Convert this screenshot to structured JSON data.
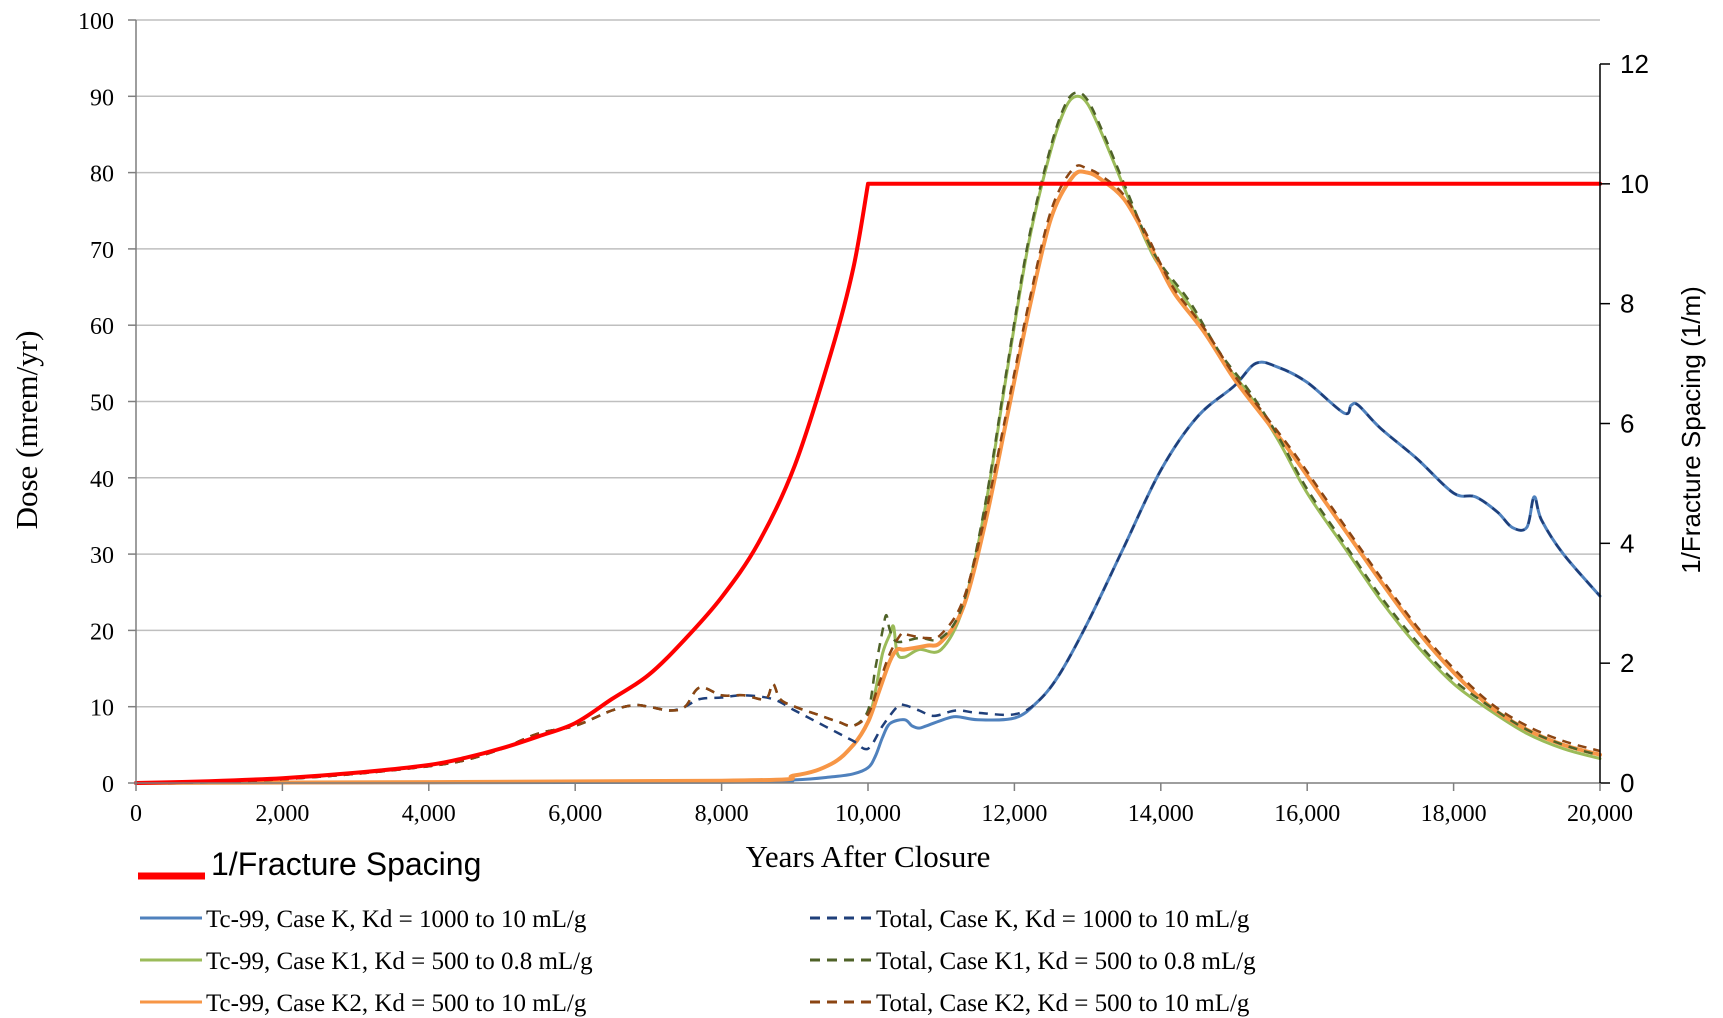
{
  "chart_data": {
    "type": "line",
    "xlabel": "Years After Closure",
    "ylabel_left": "Dose (mrem/yr)",
    "ylabel_right": "1/Fracture Spacing (1/m)",
    "xlim": [
      0,
      20000
    ],
    "ylim_left": [
      0,
      100
    ],
    "ylim_right": [
      0,
      13
    ],
    "x_ticks": [
      0,
      2000,
      4000,
      6000,
      8000,
      10000,
      12000,
      14000,
      16000,
      18000,
      20000
    ],
    "x_tick_labels": [
      "0",
      "2,000",
      "4,000",
      "6,000",
      "8,000",
      "10,000",
      "12,000",
      "14,000",
      "16,000",
      "18,000",
      "20,000"
    ],
    "y_ticks_left": [
      0,
      10,
      20,
      30,
      40,
      50,
      60,
      70,
      80,
      90,
      100
    ],
    "y_tick_labels_left": [
      "0",
      "10",
      "20",
      "30",
      "40",
      "50",
      "60",
      "70",
      "80",
      "90",
      "100"
    ],
    "y_ticks_right": [
      0,
      2,
      4,
      6,
      8,
      10,
      12
    ],
    "y_tick_labels_right": [
      "0",
      "2",
      "4",
      "6",
      "8",
      "10",
      "12"
    ],
    "grid": "horizontal",
    "legend_fracture": "1/Fracture Spacing",
    "legend_placement": "bottom",
    "series": [
      {
        "name": "1/Fracture Spacing",
        "axis": "right",
        "color": "#ff0000",
        "dash": "solid",
        "width": 4,
        "x": [
          0,
          1000,
          2000,
          3000,
          4000,
          4500,
          5000,
          5500,
          6000,
          6500,
          7000,
          7500,
          8000,
          8500,
          9000,
          9500,
          9800,
          10000,
          20000
        ],
        "y": [
          0,
          0.03,
          0.08,
          0.17,
          0.3,
          0.42,
          0.58,
          0.78,
          1.0,
          1.4,
          1.8,
          2.4,
          3.1,
          4.0,
          5.3,
          7.2,
          8.6,
          10.0,
          10.0
        ]
      },
      {
        "name": "Tc-99, Case K, Kd = 1000 to 10 mL/g",
        "axis": "left",
        "color": "#4f81bd",
        "dash": "solid",
        "width": 3,
        "x": [
          0,
          8000,
          9000,
          9500,
          9800,
          10000,
          10100,
          10200,
          10300,
          10500,
          10600,
          10700,
          10800,
          11000,
          11200,
          11500,
          12000,
          12300,
          12600,
          13000,
          13500,
          14000,
          14500,
          15000,
          15300,
          15600,
          16000,
          16500,
          16600,
          16700,
          17000,
          17500,
          18000,
          18300,
          18600,
          18800,
          19000,
          19100,
          19200,
          19500,
          20000
        ],
        "y": [
          0,
          0.1,
          0.4,
          0.8,
          1.2,
          2.0,
          3.5,
          6.0,
          7.8,
          8.3,
          7.5,
          7.2,
          7.5,
          8.2,
          8.7,
          8.3,
          8.5,
          10.5,
          14.0,
          21.0,
          31.0,
          41.0,
          48.0,
          52.0,
          55.0,
          54.5,
          52.5,
          48.5,
          49.5,
          49.5,
          46.5,
          42.5,
          38.0,
          37.5,
          35.5,
          33.5,
          33.5,
          37.5,
          34.5,
          30.0,
          24.5
        ]
      },
      {
        "name": "Tc-99, Case K1, Kd = 500 to 0.8 mL/g",
        "axis": "left",
        "color": "#9bbb59",
        "dash": "solid",
        "width": 3,
        "x": [
          0,
          8000,
          9000,
          9500,
          9800,
          10000,
          10100,
          10200,
          10300,
          10350,
          10400,
          10500,
          10700,
          11000,
          11300,
          11600,
          11900,
          12200,
          12500,
          12700,
          12850,
          13000,
          13200,
          13500,
          13800,
          14000,
          14400,
          14800,
          15200,
          15600,
          16000,
          16500,
          17000,
          17500,
          18000,
          18500,
          19000,
          19500,
          20000
        ],
        "y": [
          0,
          0.3,
          1.0,
          2.5,
          5.0,
          8.0,
          12.0,
          17.0,
          19.5,
          20.5,
          17.0,
          16.5,
          17.5,
          17.5,
          23.0,
          36.0,
          54.0,
          71.0,
          83.0,
          88.5,
          90.0,
          89.0,
          85.0,
          78.0,
          71.0,
          67.5,
          62.5,
          56.0,
          51.0,
          45.0,
          38.0,
          31.0,
          24.0,
          18.0,
          13.0,
          9.5,
          6.5,
          4.5,
          3.2
        ]
      },
      {
        "name": "Tc-99, Case K2, Kd = 500 to 10 mL/g",
        "axis": "left",
        "color": "#f79646",
        "dash": "solid",
        "width": 4,
        "x": [
          0,
          8000,
          9000,
          9500,
          9800,
          10000,
          10150,
          10300,
          10400,
          10500,
          10800,
          11000,
          11300,
          11600,
          11900,
          12200,
          12500,
          12800,
          13000,
          13200,
          13500,
          13800,
          14000,
          14200,
          14600,
          15000,
          15400,
          15800,
          16200,
          16600,
          17000,
          17500,
          18000,
          18500,
          19000,
          19500,
          20000
        ],
        "y": [
          0,
          0.3,
          1.0,
          2.5,
          5.0,
          8.0,
          12.0,
          16.0,
          17.5,
          17.5,
          18.0,
          18.5,
          23.0,
          34.0,
          48.0,
          62.0,
          74.0,
          79.5,
          80.0,
          79.0,
          76.5,
          71.5,
          67.5,
          64.0,
          59.0,
          53.0,
          48.0,
          43.0,
          37.5,
          32.0,
          26.5,
          20.0,
          14.5,
          10.0,
          7.0,
          5.0,
          3.7
        ]
      },
      {
        "name": "Total, Case K, Kd = 1000 to 10 mL/g",
        "axis": "left",
        "color": "#1f3f7a",
        "dash": "dashed",
        "width": 2.5,
        "x": [
          0,
          1000,
          2000,
          3000,
          4000,
          4500,
          5000,
          5500,
          6000,
          6500,
          6800,
          7000,
          7300,
          7500,
          7700,
          8000,
          8300,
          8700,
          9000,
          9300,
          9600,
          9800,
          10000,
          10200,
          10400,
          10500,
          10700,
          10900,
          11200,
          11500,
          12000,
          12300,
          12600,
          13000,
          13500,
          14000,
          14500,
          15000,
          15300,
          15600,
          16000,
          16500,
          16600,
          16700,
          17000,
          17500,
          18000,
          18300,
          18600,
          18800,
          19000,
          19100,
          19200,
          19500,
          20000
        ],
        "y": [
          0,
          0.1,
          0.5,
          1.2,
          2.2,
          3.0,
          4.5,
          6.5,
          7.5,
          9.5,
          10.2,
          10.0,
          9.5,
          10.0,
          11.0,
          11.2,
          11.5,
          11.0,
          9.5,
          8.0,
          6.5,
          5.5,
          4.5,
          7.5,
          10.0,
          10.2,
          9.5,
          8.8,
          9.5,
          9.2,
          9.0,
          10.5,
          14.0,
          21.0,
          31.0,
          41.0,
          48.0,
          52.0,
          55.0,
          54.5,
          52.5,
          48.5,
          49.5,
          49.5,
          46.5,
          42.5,
          38.0,
          37.5,
          35.5,
          33.5,
          33.5,
          37.5,
          34.5,
          30.0,
          24.5
        ]
      },
      {
        "name": "Total, Case K1, Kd = 500 to 0.8 mL/g",
        "axis": "left",
        "color": "#4f6228",
        "dash": "dashed",
        "width": 2.5,
        "x": [
          0,
          1000,
          2000,
          3000,
          4000,
          4500,
          5000,
          5500,
          6000,
          6500,
          6800,
          7000,
          7300,
          7500,
          7700,
          8000,
          8300,
          8600,
          8700,
          8800,
          9000,
          9300,
          9600,
          9800,
          10000,
          10100,
          10200,
          10250,
          10300,
          10400,
          10700,
          11000,
          11300,
          11600,
          11900,
          12200,
          12500,
          12700,
          12850,
          13000,
          13200,
          13500,
          13800,
          14000,
          14400,
          14800,
          15200,
          15600,
          16000,
          16500,
          17000,
          17500,
          18000,
          18500,
          19000,
          19500,
          20000
        ],
        "y": [
          0,
          0.1,
          0.5,
          1.2,
          2.2,
          3.0,
          4.5,
          6.5,
          7.5,
          9.5,
          10.2,
          10.0,
          9.5,
          10.0,
          12.5,
          11.5,
          11.5,
          11.0,
          13.0,
          11.0,
          10.0,
          9.0,
          8.0,
          7.5,
          9.5,
          15.0,
          20.0,
          22.0,
          20.0,
          18.5,
          19.0,
          19.0,
          23.5,
          36.5,
          54.5,
          71.5,
          83.5,
          89.0,
          90.5,
          89.5,
          85.5,
          78.5,
          71.5,
          68.0,
          63.0,
          56.5,
          51.5,
          45.5,
          38.5,
          31.5,
          24.5,
          18.5,
          13.5,
          10.0,
          7.0,
          5.0,
          3.6
        ]
      },
      {
        "name": "Total, Case K2, Kd = 500 to 10 mL/g",
        "axis": "left",
        "color": "#8b4513",
        "dash": "dashed",
        "width": 2.5,
        "x": [
          0,
          1000,
          2000,
          3000,
          4000,
          4500,
          5000,
          5500,
          6000,
          6500,
          6800,
          7000,
          7300,
          7500,
          7700,
          8000,
          8300,
          8600,
          8700,
          8800,
          9000,
          9300,
          9600,
          9800,
          10000,
          10150,
          10300,
          10450,
          10500,
          10800,
          11000,
          11300,
          11600,
          11900,
          12200,
          12500,
          12800,
          13000,
          13200,
          13500,
          13800,
          14000,
          14200,
          14600,
          15000,
          15400,
          15800,
          16200,
          16600,
          17000,
          17500,
          18000,
          18500,
          19000,
          19500,
          20000
        ],
        "y": [
          0,
          0.1,
          0.5,
          1.2,
          2.2,
          3.0,
          4.5,
          6.5,
          7.5,
          9.5,
          10.2,
          10.0,
          9.5,
          10.0,
          12.5,
          11.5,
          11.5,
          11.0,
          13.0,
          11.0,
          10.0,
          9.0,
          8.0,
          7.5,
          9.0,
          13.0,
          17.0,
          19.5,
          19.5,
          19.0,
          19.5,
          24.0,
          35.0,
          49.0,
          63.0,
          75.0,
          80.5,
          80.5,
          79.5,
          77.0,
          72.0,
          68.0,
          64.5,
          59.5,
          53.5,
          48.5,
          43.5,
          38.0,
          32.5,
          27.0,
          20.5,
          15.0,
          10.5,
          7.5,
          5.5,
          4.2
        ]
      }
    ],
    "legend": [
      {
        "label": "Tc-99, Case K, Kd = 1000 to 10 mL/g",
        "series": 1
      },
      {
        "label": "Total, Case K, Kd = 1000 to 10 mL/g",
        "series": 4
      },
      {
        "label": "Tc-99, Case K1, Kd = 500 to 0.8 mL/g",
        "series": 2
      },
      {
        "label": "Total, Case K1, Kd = 500 to 0.8 mL/g",
        "series": 5
      },
      {
        "label": "Tc-99, Case K2, Kd = 500 to 10 mL/g",
        "series": 3
      },
      {
        "label": "Total, Case K2, Kd = 500 to 10 mL/g",
        "series": 6
      }
    ]
  }
}
